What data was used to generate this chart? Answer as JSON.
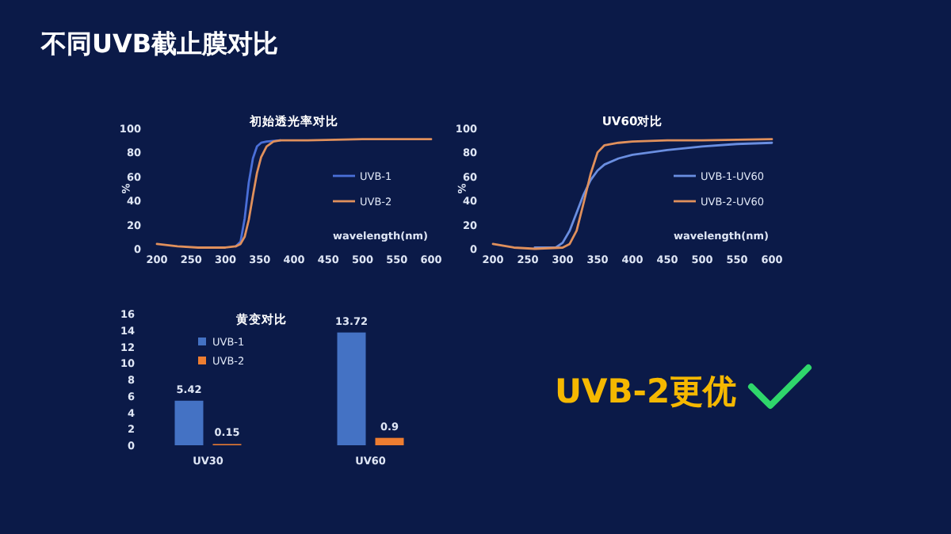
{
  "chart_data": [
    {
      "type": "other",
      "title": "不同UVB截止膜对比",
      "annotations": [
        "UVB-2更优"
      ]
    },
    {
      "type": "line",
      "title": "初始透光率对比",
      "xlabel": "wavelength(nm)",
      "ylabel": "%",
      "xlim": [
        200,
        600
      ],
      "ylim": [
        0,
        100
      ],
      "xticks": [
        200,
        250,
        300,
        350,
        400,
        450,
        500,
        550,
        600
      ],
      "yticks": [
        0,
        20,
        40,
        60,
        80,
        100
      ],
      "grid": false,
      "legend": "right",
      "series": [
        {
          "name": "UVB-1",
          "color": "#4a6fd8",
          "x": [
            315,
            322,
            328,
            334,
            340,
            346,
            352,
            360,
            380
          ],
          "values": [
            2,
            6,
            25,
            55,
            75,
            85,
            88,
            89,
            90
          ]
        },
        {
          "name": "UVB-2",
          "color": "#e0905c",
          "x": [
            200,
            230,
            260,
            300,
            315,
            322,
            328,
            334,
            340,
            346,
            352,
            360,
            370,
            380,
            420,
            500,
            600
          ],
          "values": [
            4,
            2,
            1,
            1,
            2,
            4,
            10,
            24,
            44,
            63,
            76,
            85,
            89,
            90,
            90,
            91,
            91
          ]
        }
      ]
    },
    {
      "type": "line",
      "title": "UV60对比",
      "xlabel": "wavelength(nm)",
      "ylabel": "%",
      "xlim": [
        200,
        600
      ],
      "ylim": [
        0,
        100
      ],
      "xticks": [
        200,
        250,
        300,
        350,
        400,
        450,
        500,
        550,
        600
      ],
      "yticks": [
        0,
        20,
        40,
        60,
        80,
        100
      ],
      "grid": false,
      "legend": "right",
      "series": [
        {
          "name": "UVB-1-UV60",
          "color": "#6a8ee0",
          "x": [
            260,
            290,
            300,
            310,
            320,
            330,
            340,
            350,
            360,
            380,
            400,
            450,
            500,
            550,
            600
          ],
          "values": [
            1,
            1,
            5,
            15,
            30,
            45,
            57,
            65,
            70,
            75,
            78,
            82,
            85,
            87,
            88
          ]
        },
        {
          "name": "UVB-2-UV60",
          "color": "#e0905c",
          "x": [
            200,
            230,
            260,
            300,
            310,
            320,
            330,
            340,
            350,
            360,
            380,
            400,
            450,
            500,
            600
          ],
          "values": [
            4,
            1,
            0,
            1,
            4,
            15,
            38,
            62,
            80,
            86,
            88,
            89,
            90,
            90,
            91
          ]
        }
      ]
    },
    {
      "type": "bar",
      "title": "黄变对比",
      "categories": [
        "UV30",
        "UV60"
      ],
      "ylim": [
        0,
        16
      ],
      "yticks": [
        0,
        2,
        4,
        6,
        8,
        10,
        12,
        14,
        16
      ],
      "grid": false,
      "legend": "top left",
      "data_labels": true,
      "series": [
        {
          "name": "UVB-1",
          "color": "#4472c4",
          "values": [
            5.42,
            13.72
          ]
        },
        {
          "name": "UVB-2",
          "color": "#ed7d31",
          "values": [
            0.15,
            0.9
          ]
        }
      ]
    }
  ]
}
